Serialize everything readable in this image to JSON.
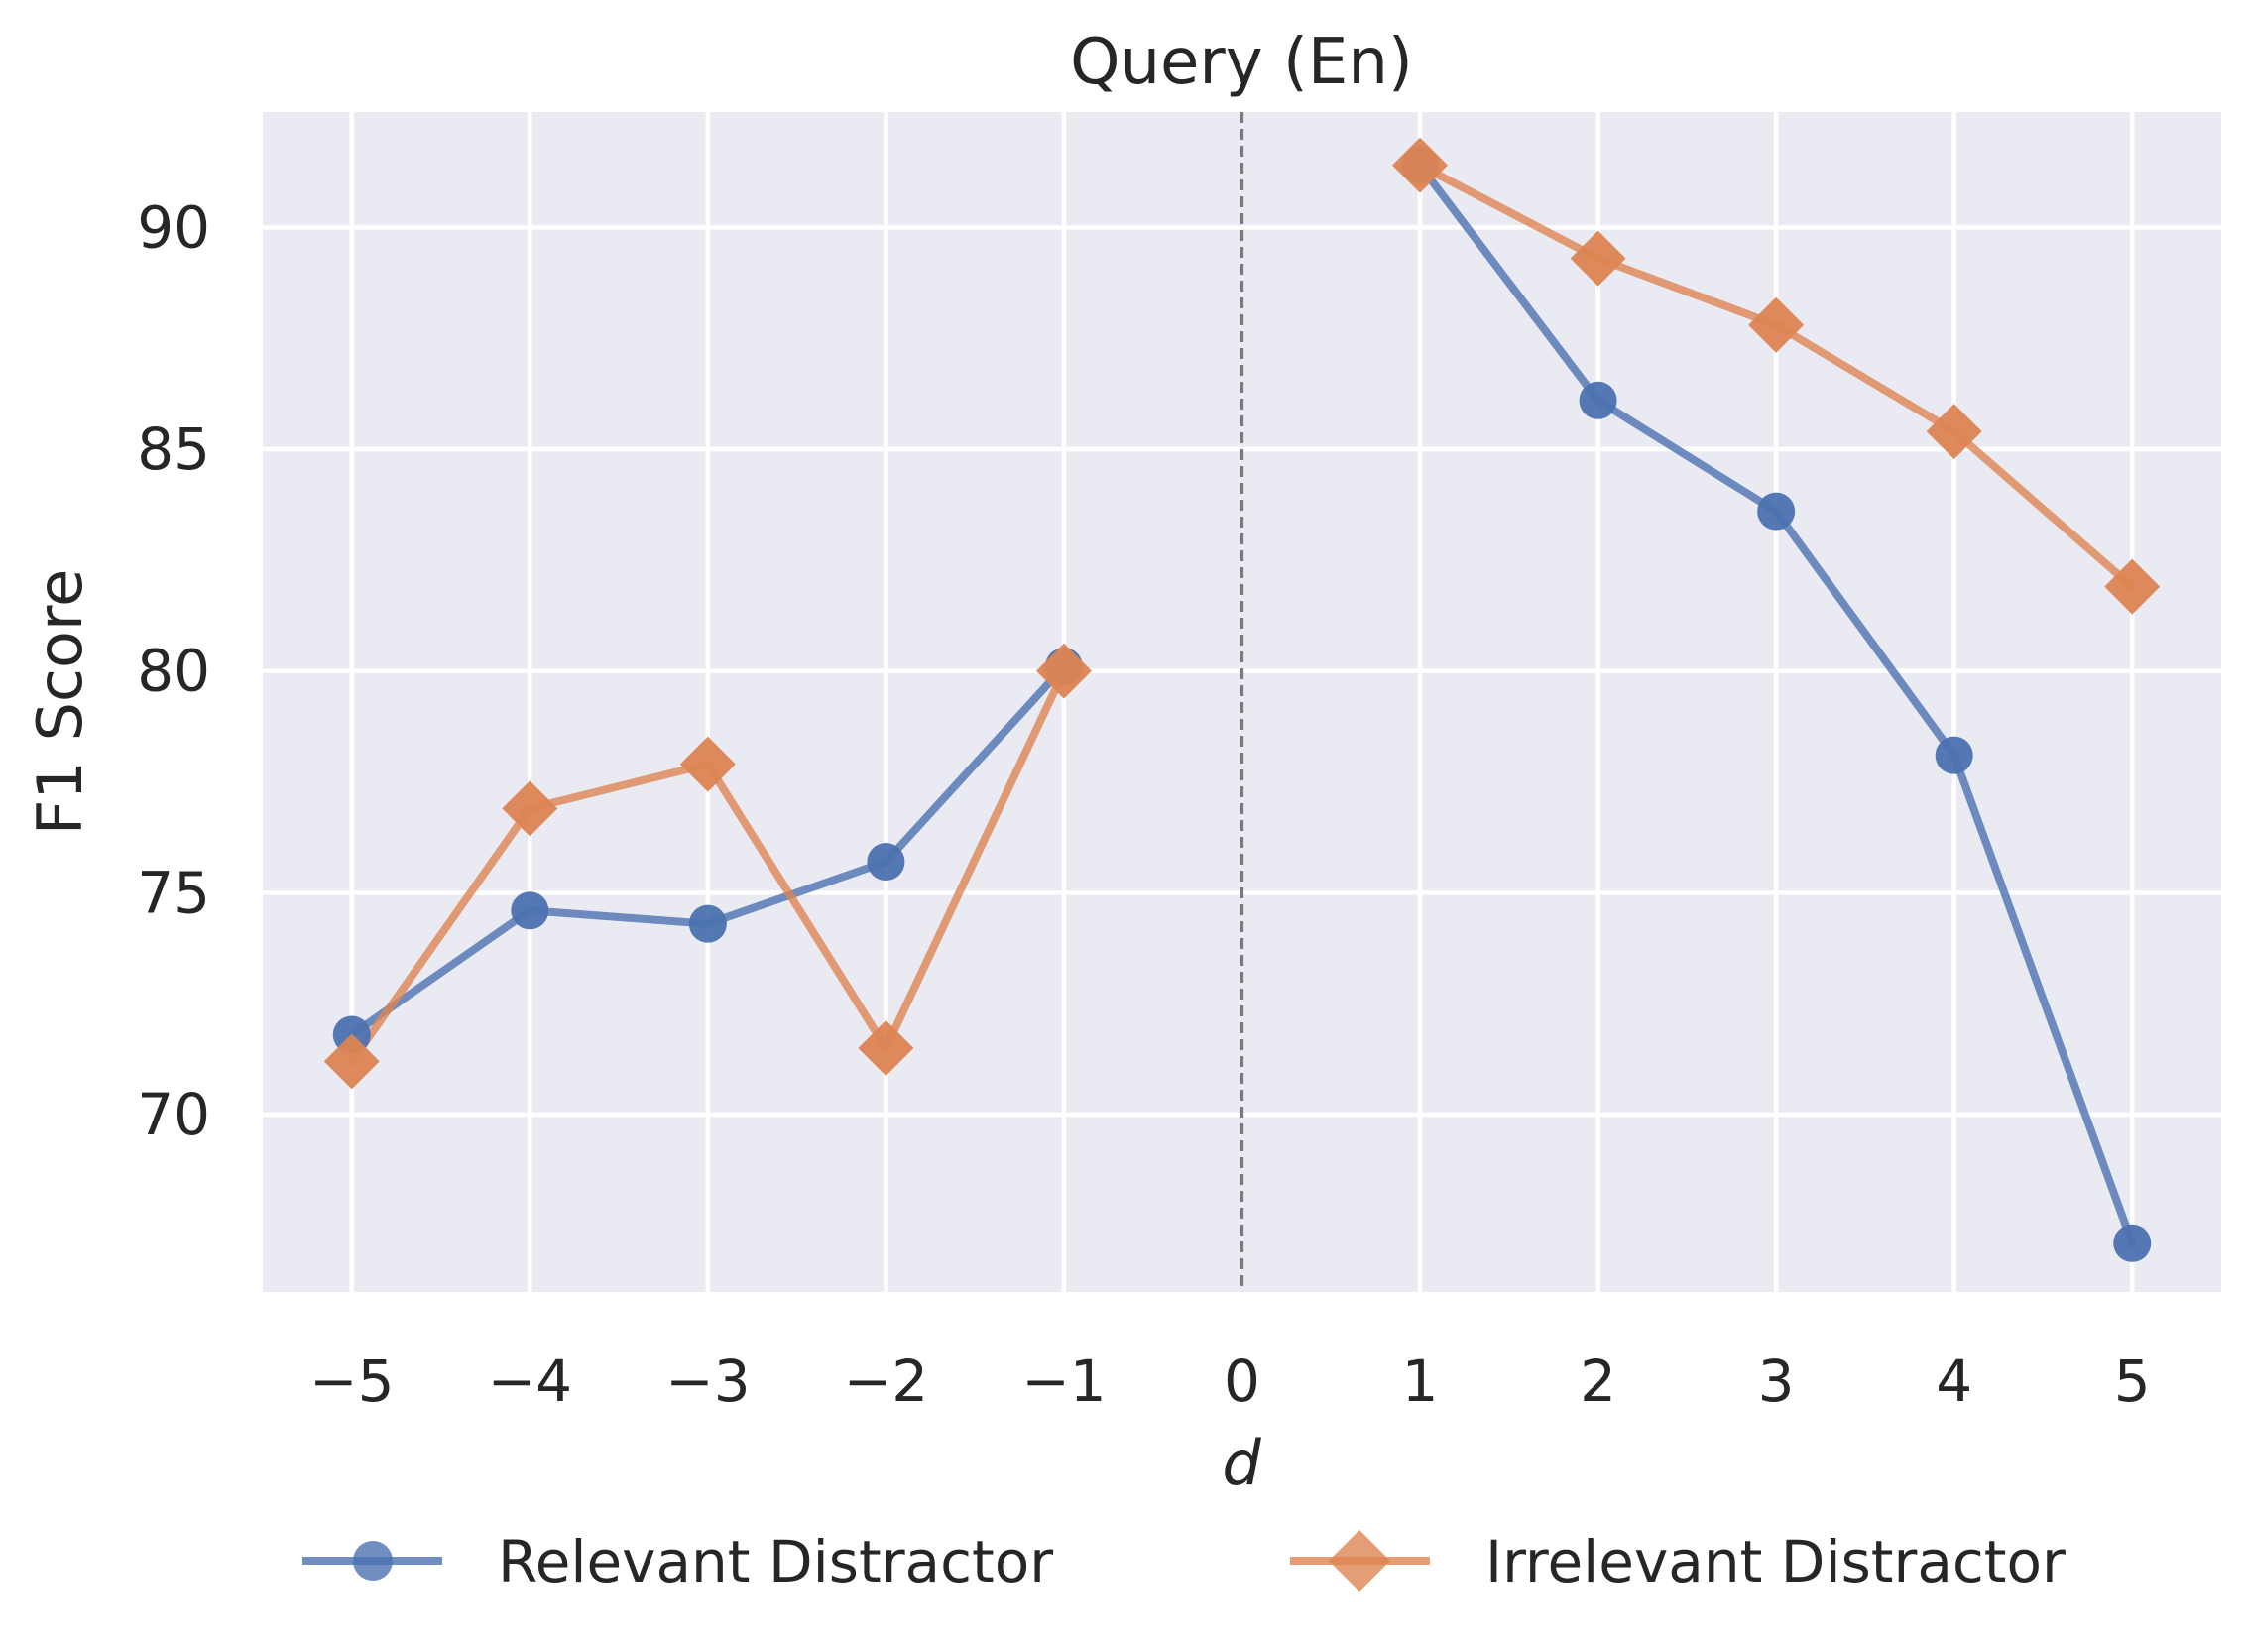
{
  "chart_data": {
    "type": "line",
    "title": "Query (En)",
    "xlabel": "d",
    "ylabel": "F1 Score",
    "x": [
      -5,
      -4,
      -3,
      -2,
      -1,
      0,
      1,
      2,
      3,
      4,
      5
    ],
    "xtick_labels": [
      "−5",
      "−4",
      "−3",
      "−2",
      "−1",
      "0",
      "1",
      "2",
      "3",
      "4",
      "5"
    ],
    "xlim": [
      -5.5,
      5.5
    ],
    "yticks": [
      70,
      75,
      80,
      85,
      90
    ],
    "ylim": [
      66.0,
      92.6
    ],
    "grid": true,
    "vline": {
      "x": 0,
      "style": "dashed"
    },
    "legend_position": "bottom",
    "series": [
      {
        "name": "Relevant Distractor",
        "color": "#4c72b0",
        "marker": "circle",
        "segments": [
          {
            "x": [
              -5,
              -4,
              -3,
              -2,
              -1
            ],
            "y": [
              71.8,
              74.6,
              74.3,
              75.7,
              80.1
            ]
          },
          {
            "x": [
              1,
              2,
              3,
              4,
              5
            ],
            "y": [
              91.4,
              86.1,
              83.6,
              78.1,
              67.1
            ]
          }
        ]
      },
      {
        "name": "Irrelevant Distractor",
        "color": "#dd8452",
        "marker": "diamond",
        "segments": [
          {
            "x": [
              -5,
              -4,
              -3,
              -2,
              -1
            ],
            "y": [
              71.2,
              76.9,
              77.9,
              71.5,
              80.0
            ]
          },
          {
            "x": [
              1,
              2,
              3,
              4,
              5
            ],
            "y": [
              91.4,
              89.3,
              87.8,
              85.4,
              81.9
            ]
          }
        ]
      }
    ]
  }
}
